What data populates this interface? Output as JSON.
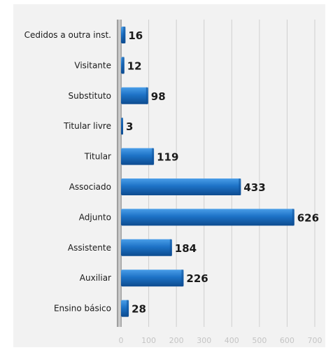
{
  "chart_data": {
    "type": "bar",
    "orientation": "horizontal",
    "categories": [
      "Cedidos a outra inst.",
      "Visitante",
      "Substituto",
      "Titular livre",
      "Titular",
      "Associado",
      "Adjunto",
      "Assistente",
      "Auxiliar",
      "Ensino básico"
    ],
    "values": [
      16,
      12,
      98,
      3,
      119,
      433,
      626,
      184,
      226,
      28
    ],
    "xlim": [
      0,
      700
    ],
    "xticks": [
      0,
      100,
      200,
      300,
      400,
      500,
      600,
      700
    ],
    "grid": true,
    "bar_color": "#1b6fc2",
    "bar_color_light": "#3f95e6",
    "bar_color_dark": "#0e4f95"
  }
}
